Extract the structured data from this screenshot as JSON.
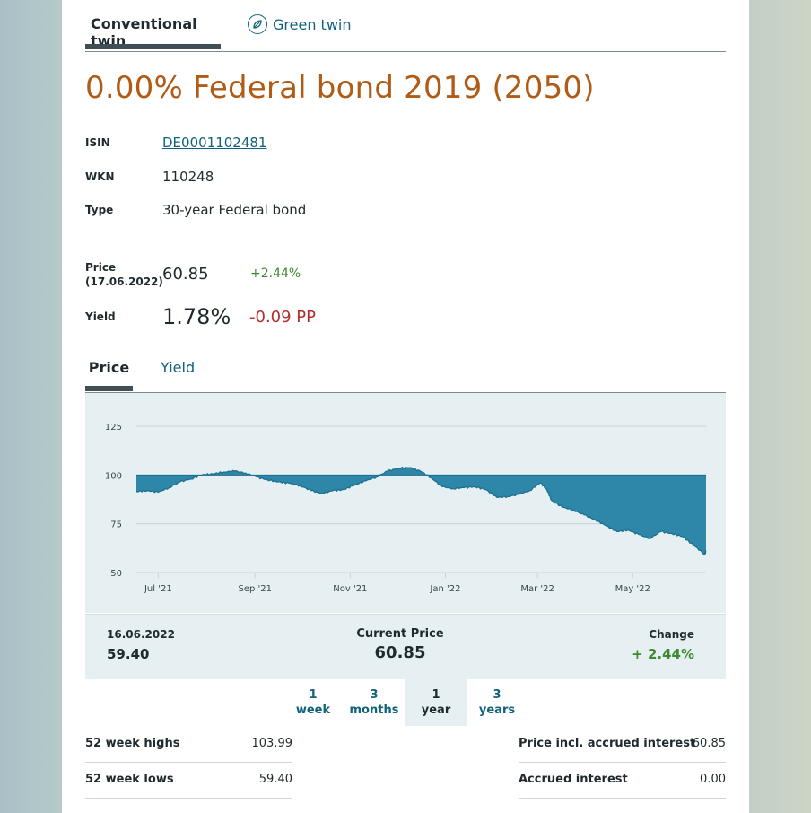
{
  "twin_tabs": [
    {
      "label": "Conventional twin",
      "active": true
    },
    {
      "label": "Green twin",
      "icon": "leaf-icon",
      "active": false
    }
  ],
  "bond": {
    "title": "0.00% Federal bond 2019 (2050)",
    "isin_label": "ISIN",
    "isin": "DE0001102481",
    "wkn_label": "WKN",
    "wkn": "110248",
    "type_label": "Type",
    "type": "30-year Federal bond",
    "price_label_line1": "Price",
    "price_label_line2": "(17.06.2022)",
    "price": "60.85",
    "price_change": "+2.44%",
    "yield_label": "Yield",
    "yield": "1.78%",
    "yield_change": "-0.09 PP"
  },
  "chart_tabs": [
    {
      "label": "Price",
      "active": true
    },
    {
      "label": "Yield",
      "active": false
    }
  ],
  "chart_data": {
    "type": "area",
    "baseline": 100,
    "y_ticks": [
      "125",
      "100",
      "75",
      "50"
    ],
    "ylim": [
      50,
      125
    ],
    "x_ticks": [
      "Jul '21",
      "Sep '21",
      "Nov '21",
      "Jan '22",
      "Mar '22",
      "May '22"
    ],
    "x_start": "2021-06-17",
    "x_end": "2022-06-17",
    "grid": true,
    "colors": {
      "fill": "#2e86a8",
      "stroke": "#1f6f8f",
      "grid": "#c9d3d6"
    },
    "series": [
      {
        "x": [
          "2021-06-17",
          "2021-06-24",
          "2021-07-01",
          "2021-07-08",
          "2021-07-15",
          "2021-07-22",
          "2021-07-29",
          "2021-08-05",
          "2021-08-12",
          "2021-08-19",
          "2021-08-26",
          "2021-09-02",
          "2021-09-09",
          "2021-09-16",
          "2021-09-23",
          "2021-09-30",
          "2021-10-07",
          "2021-10-14",
          "2021-10-21",
          "2021-10-28",
          "2021-11-04",
          "2021-11-11",
          "2021-11-18",
          "2021-11-25",
          "2021-12-02",
          "2021-12-09",
          "2021-12-16",
          "2021-12-23",
          "2021-12-30",
          "2022-01-06",
          "2022-01-13",
          "2022-01-20",
          "2022-01-27",
          "2022-02-03",
          "2022-02-10",
          "2022-02-17",
          "2022-02-24",
          "2022-03-03",
          "2022-03-07",
          "2022-03-10",
          "2022-03-17",
          "2022-03-24",
          "2022-03-31",
          "2022-04-07",
          "2022-04-14",
          "2022-04-21",
          "2022-04-28",
          "2022-05-05",
          "2022-05-12",
          "2022-05-19",
          "2022-05-26",
          "2022-06-02",
          "2022-06-09",
          "2022-06-16",
          "2022-06-17"
        ],
        "values": [
          91.5,
          92.0,
          91.2,
          93.5,
          96.5,
          98.0,
          100.0,
          100.5,
          101.5,
          102.0,
          101.0,
          99.0,
          97.5,
          96.5,
          95.8,
          94.5,
          92.0,
          90.5,
          92.0,
          92.5,
          95.0,
          97.0,
          99.0,
          102.0,
          103.5,
          103.8,
          102.0,
          98.5,
          94.0,
          93.0,
          93.5,
          94.0,
          92.5,
          88.5,
          89.0,
          90.0,
          92.0,
          96.0,
          92.5,
          87.0,
          83.5,
          82.0,
          79.5,
          77.0,
          74.0,
          71.0,
          71.8,
          69.5,
          67.5,
          71.0,
          70.0,
          68.5,
          64.0,
          59.4,
          60.85
        ]
      }
    ]
  },
  "summary": {
    "prev_date": "16.06.2022",
    "prev_value": "59.40",
    "current_label": "Current Price",
    "current_value": "60.85",
    "change_label": "Change",
    "change_value": "+ 2.44%"
  },
  "ranges": [
    {
      "line1": "1",
      "line2": "week",
      "active": false
    },
    {
      "line1": "3",
      "line2": "months",
      "active": false
    },
    {
      "line1": "1",
      "line2": "year",
      "active": true
    },
    {
      "line1": "3",
      "line2": "years",
      "active": false
    }
  ],
  "stats_left": [
    {
      "label": "52 week highs",
      "value": "103.99"
    },
    {
      "label": "52 week lows",
      "value": "59.40"
    }
  ],
  "stats_right": [
    {
      "label": "Price incl. accrued interest",
      "value": "60.85"
    },
    {
      "label": "Accrued interest",
      "value": "0.00"
    }
  ]
}
